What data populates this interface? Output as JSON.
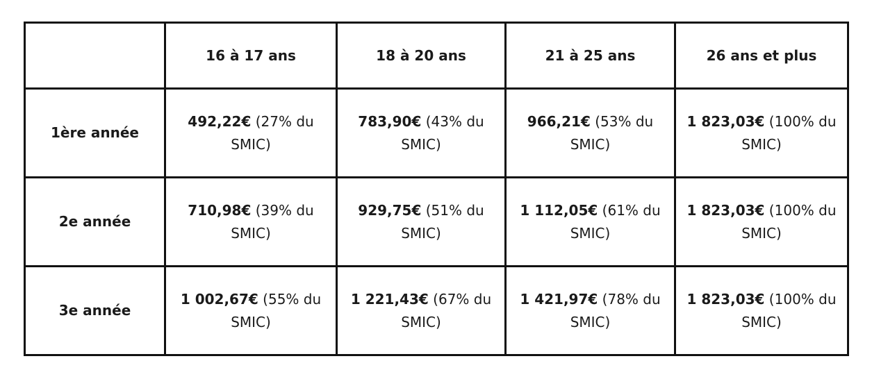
{
  "table": {
    "corner": "",
    "columns": [
      "16 à 17 ans",
      "18 à 20 ans",
      "21 à 25 ans",
      "26 ans et plus"
    ],
    "rows": [
      {
        "label": "1ère année",
        "cells": [
          {
            "amount": "492,22€",
            "pct": " (27% du SMIC)"
          },
          {
            "amount": "783,90€",
            "pct": " (43% du SMIC)"
          },
          {
            "amount": "966,21€",
            "pct": " (53% du SMIC)"
          },
          {
            "amount": "1 823,03€",
            "pct": " (100% du SMIC)"
          }
        ]
      },
      {
        "label": "2e année",
        "cells": [
          {
            "amount": "710,98€",
            "pct": " (39% du SMIC)"
          },
          {
            "amount": "929,75€",
            "pct": " (51% du SMIC)"
          },
          {
            "amount": "1 112,05€",
            "pct": " (61% du SMIC)"
          },
          {
            "amount": "1 823,03€",
            "pct": " (100% du SMIC)"
          }
        ]
      },
      {
        "label": "3e année",
        "cells": [
          {
            "amount": "1 002,67€",
            "pct": " (55% du SMIC)"
          },
          {
            "amount": "1 221,43€",
            "pct": " (67% du SMIC)"
          },
          {
            "amount": "1 421,97€",
            "pct": " (78% du SMIC)"
          },
          {
            "amount": "1 823,03€",
            "pct": " (100% du SMIC)"
          }
        ]
      }
    ]
  }
}
